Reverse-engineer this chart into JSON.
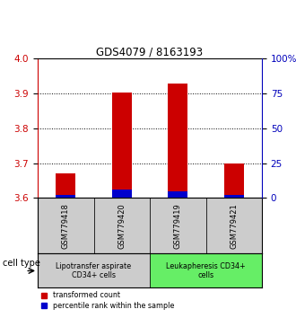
{
  "title": "GDS4079 / 8163193",
  "samples": [
    "GSM779418",
    "GSM779420",
    "GSM779419",
    "GSM779421"
  ],
  "red_values": [
    3.672,
    3.902,
    3.928,
    3.698
  ],
  "blue_values": [
    3.608,
    3.624,
    3.618,
    3.608
  ],
  "y_min": 3.6,
  "y_max": 4.0,
  "y_ticks_left": [
    3.6,
    3.7,
    3.8,
    3.9,
    4.0
  ],
  "y_ticks_right": [
    0,
    25,
    50,
    75,
    100
  ],
  "y_labels_right": [
    "0",
    "25",
    "50",
    "75",
    "100%"
  ],
  "dotted_lines": [
    3.7,
    3.8,
    3.9
  ],
  "bar_width": 0.35,
  "red_color": "#cc0000",
  "blue_color": "#0000cc",
  "left_tick_color": "#cc0000",
  "right_tick_color": "#0000bb",
  "cell_type_groups": [
    {
      "label": "Lipotransfer aspirate\nCD34+ cells",
      "start": 0,
      "end": 2,
      "color": "#cccccc"
    },
    {
      "label": "Leukapheresis CD34+\ncells",
      "start": 2,
      "end": 4,
      "color": "#66ee66"
    }
  ],
  "legend_red_label": "transformed count",
  "legend_blue_label": "percentile rank within the sample",
  "cell_type_label": "cell type",
  "sample_box_color": "#cccccc",
  "title_fontsize": 8.5,
  "tick_fontsize": 7.5,
  "sample_fontsize": 6,
  "cell_fontsize": 5.8,
  "legend_fontsize": 5.8
}
